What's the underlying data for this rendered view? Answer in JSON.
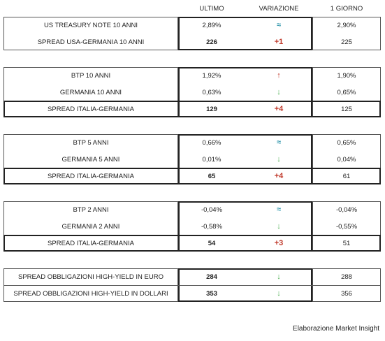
{
  "header": {
    "columns": [
      "ULTIMO",
      "VARIAZIONE",
      "1 GIORNO"
    ]
  },
  "groups": [
    {
      "rows": [
        [
          "US TREASURY NOTE 10 ANNI",
          "2,89%",
          "≈",
          "2,90%"
        ],
        [
          "SPREAD USA-GERMANIA 10 ANNI",
          "226",
          "+1",
          "225"
        ]
      ]
    },
    {
      "rows": [
        [
          "BTP 10 ANNI",
          "1,92%",
          "↑",
          "1,90%"
        ],
        [
          "GERMANIA 10 ANNI",
          "0,63%",
          "↓",
          "0,65%"
        ],
        [
          "SPREAD ITALIA-GERMANIA",
          "129",
          "+4",
          "125"
        ]
      ]
    },
    {
      "rows": [
        [
          "BTP 5 ANNI",
          "0,66%",
          "≈",
          "0,65%"
        ],
        [
          "GERMANIA 5 ANNI",
          "0,01%",
          "↓",
          "0,04%"
        ],
        [
          "SPREAD ITALIA-GERMANIA",
          "65",
          "+4",
          "61"
        ]
      ]
    },
    {
      "rows": [
        [
          "BTP 2 ANNI",
          "-0,04%",
          "≈",
          "-0,04%"
        ],
        [
          "GERMANIA 2 ANNI",
          "-0,58%",
          "↓",
          "-0,55%"
        ],
        [
          "SPREAD ITALIA-GERMANIA",
          "54",
          "+3",
          "51"
        ]
      ]
    },
    {
      "rows": [
        [
          "SPREAD OBBLIGAZIONI HIGH-YIELD IN EURO",
          "284",
          "↓",
          "288"
        ],
        [
          "SPREAD OBBLIGAZIONI HIGH-YIELD IN DOLLARI",
          "353",
          "↓",
          "356"
        ]
      ]
    }
  ],
  "footer": "Elaborazione Market Insight"
}
